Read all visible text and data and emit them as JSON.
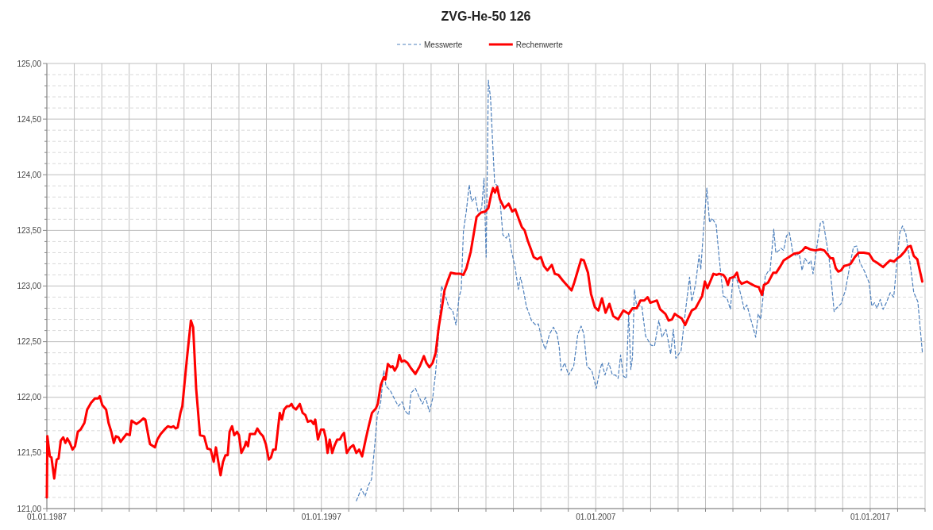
{
  "chart_data": {
    "type": "line",
    "title": "ZVG-He-50 126",
    "legend": "top",
    "grid": true,
    "xlim": [
      "1987-01-01",
      "2019-01-01"
    ],
    "xticks": [
      {
        "value": "1987-01-01",
        "label": "01.01.1987"
      },
      {
        "value": "1988-01-01",
        "label": null
      },
      {
        "value": "1989-01-01",
        "label": null
      },
      {
        "value": "1990-01-01",
        "label": null
      },
      {
        "value": "1991-01-01",
        "label": null
      },
      {
        "value": "1992-01-01",
        "label": null
      },
      {
        "value": "1993-01-01",
        "label": null
      },
      {
        "value": "1994-01-01",
        "label": null
      },
      {
        "value": "1995-01-01",
        "label": null
      },
      {
        "value": "1996-01-01",
        "label": null
      },
      {
        "value": "1997-01-01",
        "label": "01.01.1997"
      },
      {
        "value": "1998-01-01",
        "label": null
      },
      {
        "value": "1999-01-01",
        "label": null
      },
      {
        "value": "2000-01-01",
        "label": null
      },
      {
        "value": "2001-01-01",
        "label": null
      },
      {
        "value": "2002-01-01",
        "label": null
      },
      {
        "value": "2003-01-01",
        "label": null
      },
      {
        "value": "2004-01-01",
        "label": null
      },
      {
        "value": "2005-01-01",
        "label": null
      },
      {
        "value": "2006-01-01",
        "label": null
      },
      {
        "value": "2007-01-01",
        "label": "01.01.2007"
      },
      {
        "value": "2008-01-01",
        "label": null
      },
      {
        "value": "2009-01-01",
        "label": null
      },
      {
        "value": "2010-01-01",
        "label": null
      },
      {
        "value": "2011-01-01",
        "label": null
      },
      {
        "value": "2012-01-01",
        "label": null
      },
      {
        "value": "2013-01-01",
        "label": null
      },
      {
        "value": "2014-01-01",
        "label": null
      },
      {
        "value": "2015-01-01",
        "label": null
      },
      {
        "value": "2016-01-01",
        "label": null
      },
      {
        "value": "2017-01-01",
        "label": "01.01.2017"
      },
      {
        "value": "2018-01-01",
        "label": null
      },
      {
        "value": "2019-01-01",
        "label": null
      }
    ],
    "ylim": [
      121,
      125
    ],
    "yticks": [
      {
        "value": 121,
        "label": "121,00"
      },
      {
        "value": 121.1,
        "label": null
      },
      {
        "value": 121.2,
        "label": null
      },
      {
        "value": 121.3,
        "label": null
      },
      {
        "value": 121.4,
        "label": null
      },
      {
        "value": 121.5,
        "label": "121,50"
      },
      {
        "value": 121.6,
        "label": null
      },
      {
        "value": 121.7,
        "label": null
      },
      {
        "value": 121.8,
        "label": null
      },
      {
        "value": 121.9,
        "label": null
      },
      {
        "value": 122,
        "label": "122,00"
      },
      {
        "value": 122.1,
        "label": null
      },
      {
        "value": 122.2,
        "label": null
      },
      {
        "value": 122.3,
        "label": null
      },
      {
        "value": 122.4,
        "label": null
      },
      {
        "value": 122.5,
        "label": "122,50"
      },
      {
        "value": 122.6,
        "label": null
      },
      {
        "value": 122.7,
        "label": null
      },
      {
        "value": 122.8,
        "label": null
      },
      {
        "value": 122.9,
        "label": null
      },
      {
        "value": 123,
        "label": "123,00"
      },
      {
        "value": 123.1,
        "label": null
      },
      {
        "value": 123.2,
        "label": null
      },
      {
        "value": 123.3,
        "label": null
      },
      {
        "value": 123.4,
        "label": null
      },
      {
        "value": 123.5,
        "label": "123,50"
      },
      {
        "value": 123.6,
        "label": null
      },
      {
        "value": 123.7,
        "label": null
      },
      {
        "value": 123.8,
        "label": null
      },
      {
        "value": 123.9,
        "label": null
      },
      {
        "value": 124,
        "label": "124,00"
      },
      {
        "value": 124.1,
        "label": null
      },
      {
        "value": 124.2,
        "label": null
      },
      {
        "value": 124.3,
        "label": null
      },
      {
        "value": 124.4,
        "label": null
      },
      {
        "value": 124.5,
        "label": "124,50"
      },
      {
        "value": 124.6,
        "label": null
      },
      {
        "value": 124.7,
        "label": null
      },
      {
        "value": 124.8,
        "label": null
      },
      {
        "value": 124.9,
        "label": null
      },
      {
        "value": 125,
        "label": "125,00"
      }
    ],
    "series": [
      {
        "name": "Messwerte",
        "color": "#4f81bd",
        "line_style": "dashed",
        "x": [
          "1998-04-12",
          "1998-05-19",
          "1998-06-17",
          "1998-08-07",
          "1998-09-20",
          "1998-10-30",
          "1998-12-09",
          "1999-01-15",
          "1999-03-03",
          "1999-04-12",
          "1999-05-12",
          "1999-07-09",
          "1999-09-05",
          "1999-10-23",
          "1999-12-13",
          "2000-01-19",
          "2000-03-11",
          "2000-04-09",
          "2000-06-06",
          "2000-08-04",
          "2000-09-09",
          "2000-10-19",
          "2000-12-09",
          "2001-01-22",
          "2001-03-03",
          "2001-04-12",
          "2001-05-19",
          "2001-06-28",
          "2001-08-25",
          "2001-10-15",
          "2001-11-28",
          "2002-01-08",
          "2002-02-06",
          "2002-03-07",
          "2002-04-16",
          "2002-05-23",
          "2002-06-24",
          "2002-08-11",
          "2002-09-27",
          "2002-11-06",
          "2002-12-06",
          "2003-01-04",
          "2003-02-02",
          "2003-03-03",
          "2003-03-29",
          "2003-04-27",
          "2003-06-06",
          "2003-07-05",
          "2003-08-14",
          "2003-09-27",
          "2003-10-30",
          "2003-12-09",
          "2004-01-26",
          "2004-03-07",
          "2004-04-05",
          "2004-05-12",
          "2004-06-21",
          "2004-08-29",
          "2004-10-23",
          "2004-11-28",
          "2005-01-19",
          "2005-02-28",
          "2005-04-27",
          "2005-06-17",
          "2005-08-04",
          "2005-09-02",
          "2005-09-27",
          "2005-11-14",
          "2006-01-04",
          "2006-03-14",
          "2006-05-08",
          "2006-06-21",
          "2006-07-27",
          "2006-09-05",
          "2006-11-10",
          "2007-01-08",
          "2007-02-24",
          "2007-03-25",
          "2007-05-04",
          "2007-06-24",
          "2007-08-11",
          "2007-09-20",
          "2007-10-26",
          "2007-11-28",
          "2008-01-04",
          "2008-02-13",
          "2008-03-14",
          "2008-04-12",
          "2008-05-04",
          "2008-05-30",
          "2008-06-28",
          "2008-09-05",
          "2008-10-26",
          "2009-01-04",
          "2009-02-21",
          "2009-04-20",
          "2009-06-03",
          "2009-07-24",
          "2009-08-22",
          "2009-09-24",
          "2009-10-30",
          "2009-12-02",
          "2010-02-10",
          "2010-04-05",
          "2010-06-03",
          "2010-07-02",
          "2010-08-22",
          "2010-10-08",
          "2010-10-30",
          "2010-12-06",
          "2011-01-19",
          "2011-02-24",
          "2011-03-29",
          "2011-05-23",
          "2011-07-02",
          "2011-08-25",
          "2011-10-15",
          "2011-11-28",
          "2012-01-04",
          "2012-02-17",
          "2012-04-20",
          "2012-05-30",
          "2012-07-05",
          "2012-10-30",
          "2012-12-02",
          "2013-01-04",
          "2013-03-07",
          "2013-04-12",
          "2013-05-08",
          "2013-06-28",
          "2013-07-24",
          "2013-09-05",
          "2013-10-01",
          "2013-11-06",
          "2013-12-13",
          "2014-01-22",
          "2014-03-11",
          "2014-05-01",
          "2014-05-30",
          "2014-07-09",
          "2014-08-14",
          "2014-10-05",
          "2014-11-03",
          "2014-12-02",
          "2015-01-19",
          "2015-03-11",
          "2015-04-16",
          "2015-05-19",
          "2015-07-02",
          "2015-08-04",
          "2015-09-09",
          "2015-10-08",
          "2015-12-09",
          "2016-02-06",
          "2016-04-01",
          "2016-05-23",
          "2016-07-05",
          "2016-08-18",
          "2016-10-19",
          "2016-12-17",
          "2017-01-22",
          "2017-02-28",
          "2017-04-01",
          "2017-05-15",
          "2017-06-21",
          "2017-08-04",
          "2017-09-24",
          "2017-11-10",
          "2017-12-20",
          "2018-01-30",
          "2018-03-07",
          "2018-04-20",
          "2018-06-13",
          "2018-08-04",
          "2018-09-27",
          "2018-11-28"
        ],
        "values": [
          121.07,
          121.13,
          121.18,
          121.11,
          121.21,
          121.26,
          121.54,
          121.83,
          121.96,
          122.24,
          122.1,
          122.06,
          121.98,
          121.92,
          121.96,
          121.88,
          121.84,
          122.04,
          122.08,
          121.99,
          121.94,
          122,
          121.87,
          121.99,
          122.23,
          122.57,
          123,
          122.94,
          122.81,
          122.78,
          122.65,
          122.9,
          122.97,
          123.49,
          123.68,
          123.91,
          123.76,
          123.8,
          123.64,
          123.71,
          123.97,
          123.26,
          124.85,
          124.69,
          124.32,
          123.92,
          123.9,
          123.79,
          123.46,
          123.43,
          123.47,
          123.31,
          123.16,
          122.97,
          123.08,
          122.97,
          122.82,
          122.69,
          122.65,
          122.66,
          122.51,
          122.43,
          122.57,
          122.63,
          122.57,
          122.45,
          122.24,
          122.31,
          122.2,
          122.28,
          122.57,
          122.64,
          122.57,
          122.28,
          122.24,
          122.08,
          122.24,
          122.31,
          122.2,
          122.31,
          122.2,
          122.2,
          122.17,
          122.38,
          122.19,
          122.17,
          122.75,
          122.25,
          122.36,
          122.97,
          122.82,
          122.82,
          122.55,
          122.47,
          122.46,
          122.69,
          122.54,
          122.61,
          122.51,
          122.39,
          122.61,
          122.35,
          122.42,
          122.75,
          123.08,
          122.86,
          123.02,
          123.28,
          123.15,
          123.51,
          123.88,
          123.57,
          123.61,
          123.55,
          123.25,
          122.91,
          122.89,
          122.79,
          123.09,
          123.07,
          122.91,
          122.79,
          122.83,
          122.54,
          122.75,
          122.7,
          123.09,
          123.13,
          123.13,
          123.51,
          123.3,
          123.32,
          123.34,
          123.32,
          123.45,
          123.48,
          123.29,
          123.27,
          123.3,
          123.14,
          123.25,
          123.2,
          123.23,
          123.11,
          123.34,
          123.57,
          123.58,
          123.44,
          123.26,
          123.03,
          122.77,
          122.8,
          122.84,
          122.96,
          123.17,
          123.35,
          123.36,
          123.21,
          123.13,
          123.03,
          122.82,
          122.85,
          122.8,
          122.88,
          122.79,
          122.85,
          122.94,
          122.9,
          123.2,
          123.48,
          123.54,
          123.47,
          123.22,
          122.94,
          122.86,
          122.39
        ]
      },
      {
        "name": "Rechenwerte",
        "color": "#ff0000",
        "line_style": "solid",
        "x": [
          "1987-01-01",
          "1987-01-08",
          "1987-02-10",
          "1987-03-03",
          "1987-04-09",
          "1987-05-12",
          "1987-06-06",
          "1987-07-05",
          "1987-08-07",
          "1987-09-05",
          "1987-10-01",
          "1987-11-03",
          "1987-12-09",
          "1988-01-11",
          "1988-02-17",
          "1988-03-25",
          "1988-05-15",
          "1988-06-21",
          "1988-08-11",
          "1988-10-01",
          "1988-11-14",
          "1988-12-06",
          "1989-01-08",
          "1989-02-28",
          "1989-04-01",
          "1989-05-08",
          "1989-06-10",
          "1989-07-09",
          "1989-08-11",
          "1989-09-09",
          "1989-10-23",
          "1989-11-25",
          "1990-01-08",
          "1990-02-02",
          "1990-04-09",
          "1990-05-19",
          "1990-07-09",
          "1990-08-04",
          "1990-09-20",
          "1990-10-05",
          "1990-12-09",
          "1991-01-11",
          "1991-02-24",
          "1991-04-16",
          "1991-05-30",
          "1991-07-13",
          "1991-08-11",
          "1991-09-13",
          "1991-10-08",
          "1991-11-14",
          "1991-12-09",
          "1992-02-10",
          "1992-04-01",
          "1992-05-01",
          "1992-06-10",
          "1992-07-31",
          "1992-09-24",
          "1992-11-06",
          "1992-12-20",
          "1993-01-30",
          "1993-02-28",
          "1993-04-01",
          "1993-05-01",
          "1993-06-03",
          "1993-07-05",
          "1993-08-04",
          "1993-08-29",
          "1993-10-01",
          "1993-10-30",
          "1993-12-06",
          "1994-01-01",
          "1994-02-02",
          "1994-03-18",
          "1994-04-05",
          "1994-05-01",
          "1994-05-26",
          "1994-07-31",
          "1994-09-02",
          "1994-10-08",
          "1994-11-17",
          "1994-12-24",
          "1995-02-02",
          "1995-03-03",
          "1995-04-01",
          "1995-05-04",
          "1995-06-28",
          "1995-07-27",
          "1995-08-25",
          "1995-10-01",
          "1995-11-03",
          "1995-12-02",
          "1995-12-24",
          "1996-01-30",
          "1996-03-21",
          "1996-04-27",
          "1996-06-03",
          "1996-07-05",
          "1996-08-18",
          "1996-09-20",
          "1996-10-12",
          "1996-11-17",
          "1996-12-28",
          "1997-02-02",
          "1997-02-28",
          "1997-03-25",
          "1997-04-23",
          "1997-05-26",
          "1997-06-28",
          "1997-07-31",
          "1997-09-05",
          "1997-10-05",
          "1997-10-30",
          "1997-12-06",
          "1998-01-22",
          "1998-03-03",
          "1998-04-12",
          "1998-05-19",
          "1998-06-28",
          "1998-08-14",
          "1998-09-20",
          "1998-11-06",
          "1998-12-28",
          "1999-01-22",
          "1999-03-03",
          "1999-04-12",
          "1999-05-04",
          "1999-06-06",
          "1999-07-13",
          "1999-08-07",
          "1999-09-05",
          "1999-10-08",
          "1999-11-06",
          "1999-12-06",
          "2000-01-11",
          "2000-02-21",
          "2000-04-09",
          "2000-06-06",
          "2000-08-04",
          "2000-09-27",
          "2000-10-30",
          "2000-12-09",
          "2001-01-22",
          "2001-03-03",
          "2001-04-12",
          "2001-05-19",
          "2001-06-28",
          "2001-08-07",
          "2001-09-20",
          "2001-11-28",
          "2002-01-26",
          "2002-03-07",
          "2002-04-16",
          "2002-06-13",
          "2002-08-29",
          "2002-10-26",
          "2002-12-24",
          "2003-02-02",
          "2003-03-11",
          "2003-04-05",
          "2003-05-01",
          "2003-05-30",
          "2003-07-05",
          "2003-09-02",
          "2003-10-30",
          "2003-12-17",
          "2004-01-26",
          "2004-03-14",
          "2004-04-23",
          "2004-05-30",
          "2004-07-09",
          "2004-08-22",
          "2004-09-27",
          "2004-11-14",
          "2005-01-01",
          "2005-02-10",
          "2005-03-29",
          "2005-05-26",
          "2005-07-05",
          "2005-08-22",
          "2005-10-19",
          "2005-12-09",
          "2006-02-13",
          "2006-03-21",
          "2006-05-12",
          "2006-06-21",
          "2006-07-27",
          "2006-09-20",
          "2006-10-30",
          "2006-12-20",
          "2007-02-06",
          "2007-03-25",
          "2007-05-12",
          "2007-07-02",
          "2007-08-22",
          "2007-10-26",
          "2008-01-04",
          "2008-03-14",
          "2008-05-04",
          "2008-06-28",
          "2008-08-18",
          "2008-10-08",
          "2008-11-21",
          "2008-12-28",
          "2009-02-10",
          "2009-03-25",
          "2009-05-08",
          "2009-07-16",
          "2009-08-29",
          "2009-10-12",
          "2009-11-17",
          "2009-12-28",
          "2010-02-17",
          "2010-04-05",
          "2010-05-08",
          "2010-07-02",
          "2010-08-22",
          "2010-10-08",
          "2010-11-17",
          "2010-12-24",
          "2011-01-26",
          "2011-03-11",
          "2011-04-16",
          "2011-05-30",
          "2011-07-02",
          "2011-08-25",
          "2011-09-27",
          "2011-10-26",
          "2011-11-21",
          "2012-01-11",
          "2012-02-24",
          "2012-03-21",
          "2012-04-27",
          "2012-07-05",
          "2012-08-25",
          "2012-10-19",
          "2012-12-09",
          "2013-01-22",
          "2013-02-17",
          "2013-04-12",
          "2013-06-21",
          "2013-07-31",
          "2013-09-16",
          "2013-11-06",
          "2014-01-15",
          "2014-03-25",
          "2014-06-03",
          "2014-07-16",
          "2014-08-22",
          "2014-10-23",
          "2015-01-01",
          "2015-03-11",
          "2015-05-01",
          "2015-06-06",
          "2015-07-24",
          "2015-08-25",
          "2015-10-01",
          "2015-11-03",
          "2015-12-09",
          "2016-01-19",
          "2016-03-14",
          "2016-04-16",
          "2016-06-10",
          "2016-07-31",
          "2016-10-08",
          "2016-12-17",
          "2017-02-10",
          "2017-04-01",
          "2017-06-21",
          "2017-08-04",
          "2017-09-24",
          "2017-11-14",
          "2017-12-28",
          "2018-02-10",
          "2018-04-05",
          "2018-05-15",
          "2018-06-24",
          "2018-08-04",
          "2018-09-20",
          "2018-11-25"
        ],
        "values": [
          121.1,
          121.65,
          121.47,
          121.46,
          121.27,
          121.44,
          121.45,
          121.61,
          121.64,
          121.59,
          121.63,
          121.59,
          121.53,
          121.56,
          121.69,
          121.71,
          121.77,
          121.89,
          121.95,
          121.99,
          121.99,
          122.01,
          121.93,
          121.89,
          121.77,
          121.69,
          121.59,
          121.65,
          121.64,
          121.6,
          121.64,
          121.67,
          121.66,
          121.79,
          121.76,
          121.78,
          121.81,
          121.8,
          121.63,
          121.58,
          121.55,
          121.62,
          121.67,
          121.71,
          121.74,
          121.73,
          121.74,
          121.72,
          121.73,
          121.86,
          121.92,
          122.36,
          122.69,
          122.63,
          122.08,
          121.66,
          121.65,
          121.54,
          121.53,
          121.42,
          121.55,
          121.42,
          121.3,
          121.42,
          121.48,
          121.48,
          121.69,
          121.74,
          121.66,
          121.69,
          121.66,
          121.5,
          121.56,
          121.6,
          121.56,
          121.67,
          121.67,
          121.72,
          121.68,
          121.65,
          121.58,
          121.44,
          121.46,
          121.53,
          121.53,
          121.86,
          121.8,
          121.89,
          121.92,
          121.92,
          121.94,
          121.91,
          121.89,
          121.94,
          121.86,
          121.84,
          121.78,
          121.79,
          121.76,
          121.8,
          121.62,
          121.71,
          121.71,
          121.64,
          121.5,
          121.62,
          121.5,
          121.57,
          121.62,
          121.62,
          121.66,
          121.68,
          121.5,
          121.55,
          121.57,
          121.5,
          121.53,
          121.47,
          121.62,
          121.73,
          121.86,
          121.9,
          121.94,
          122.11,
          122.18,
          122.16,
          122.3,
          122.27,
          122.28,
          122.24,
          122.28,
          122.38,
          122.32,
          122.33,
          122.31,
          122.26,
          122.21,
          122.28,
          122.37,
          122.31,
          122.27,
          122.31,
          122.4,
          122.63,
          122.78,
          122.96,
          123.04,
          123.12,
          123.11,
          123.11,
          123.1,
          123.16,
          123.31,
          123.62,
          123.66,
          123.67,
          123.7,
          123.82,
          123.88,
          123.84,
          123.89,
          123.78,
          123.7,
          123.74,
          123.67,
          123.69,
          123.6,
          123.53,
          123.5,
          123.41,
          123.33,
          123.26,
          123.24,
          123.26,
          123.18,
          123.14,
          123.19,
          123.11,
          123.1,
          123.05,
          123.01,
          122.96,
          123.03,
          123.15,
          123.24,
          123.23,
          123.12,
          122.93,
          122.81,
          122.78,
          122.89,
          122.76,
          122.84,
          122.73,
          122.7,
          122.78,
          122.75,
          122.8,
          122.8,
          122.87,
          122.87,
          122.9,
          122.85,
          122.86,
          122.87,
          122.79,
          122.75,
          122.69,
          122.7,
          122.75,
          122.73,
          122.71,
          122.65,
          122.7,
          122.78,
          122.8,
          122.86,
          122.91,
          123.04,
          122.98,
          123.05,
          123.11,
          123.1,
          123.11,
          123.1,
          123.07,
          123.01,
          123.07,
          123.08,
          123.12,
          123.05,
          123.02,
          123.04,
          123.02,
          123,
          122.99,
          122.92,
          123.01,
          123.03,
          123.12,
          123.12,
          123.17,
          123.23,
          123.26,
          123.29,
          123.3,
          123.32,
          123.35,
          123.33,
          123.32,
          123.33,
          123.32,
          123.29,
          123.25,
          123.25,
          123.16,
          123.13,
          123.14,
          123.18,
          123.19,
          123.2,
          123.26,
          123.3,
          123.3,
          123.29,
          123.23,
          123.21,
          123.17,
          123.2,
          123.23,
          123.22,
          123.25,
          123.27,
          123.31,
          123.35,
          123.36,
          123.27,
          123.24,
          123.04
        ]
      }
    ]
  }
}
